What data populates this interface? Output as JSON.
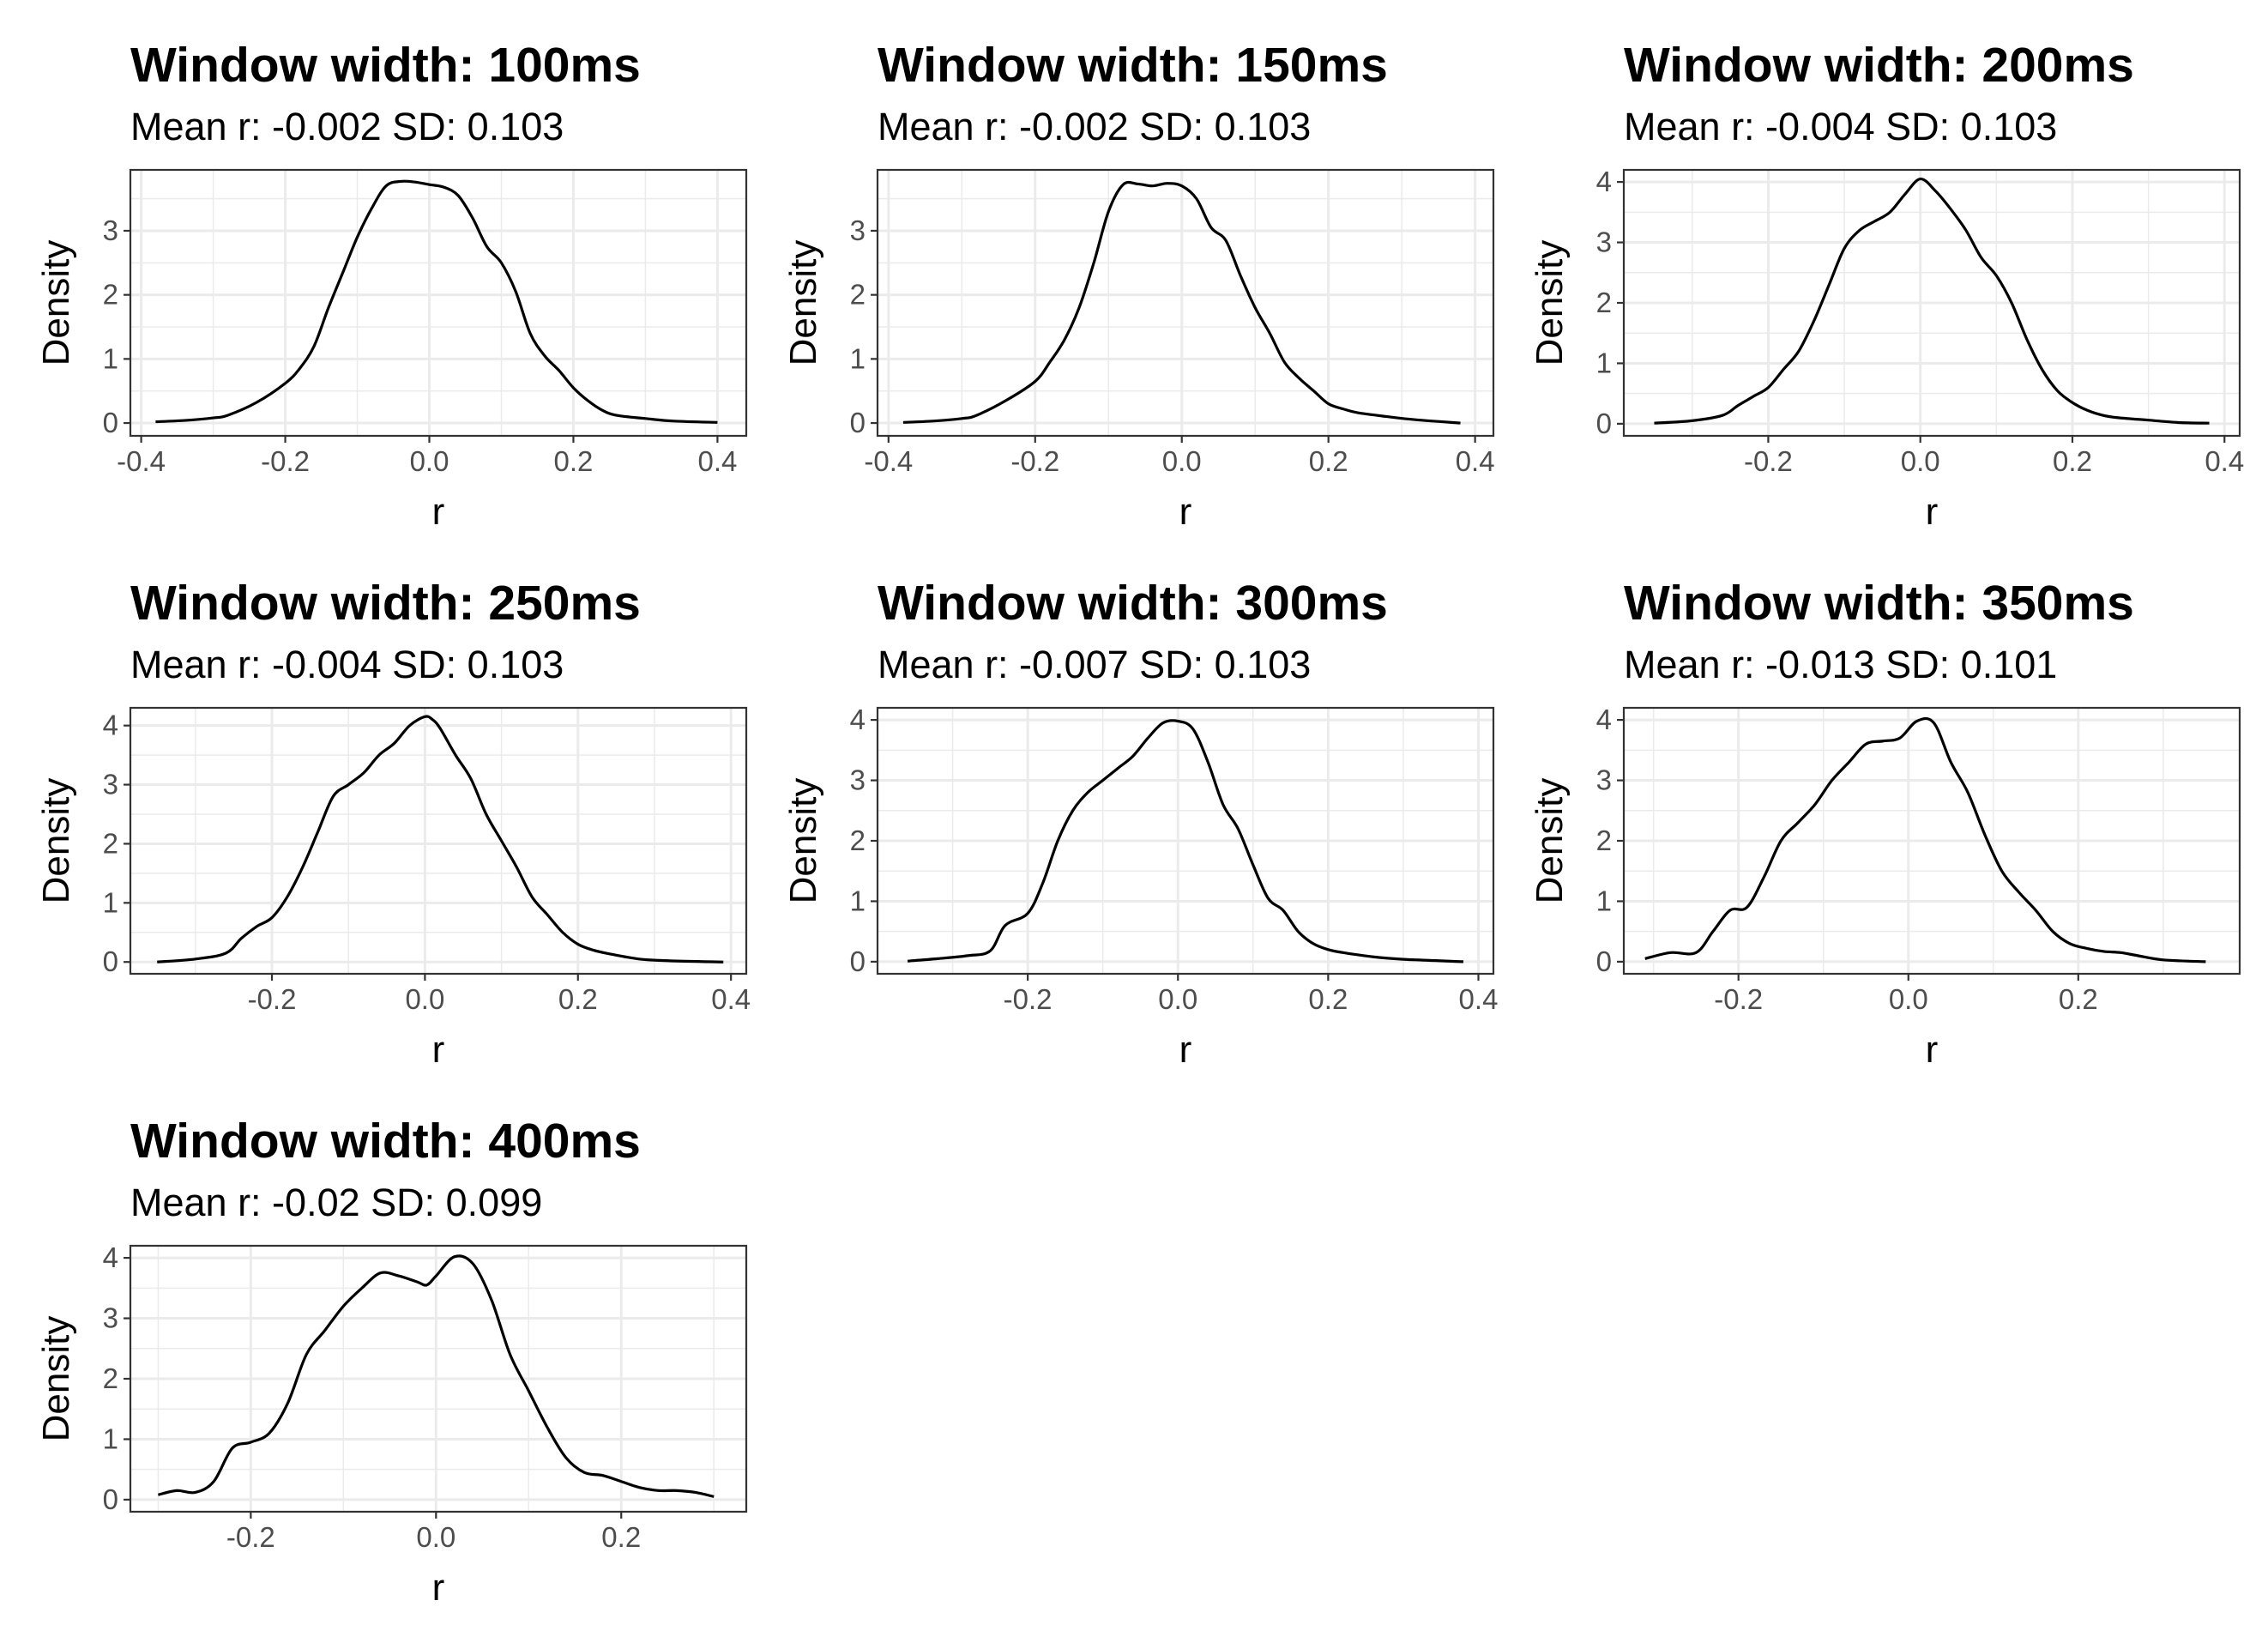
{
  "chart_data": [
    {
      "type": "line",
      "title": "Window width: 100ms",
      "subtitle": "Mean r: -0.002 SD: 0.103",
      "xlabel": "r",
      "ylabel": "Density",
      "xlim": [
        -0.415,
        0.44
      ],
      "ylim": [
        -0.2,
        3.95
      ],
      "xticks": [
        -0.4,
        -0.2,
        0.0,
        0.2,
        0.4
      ],
      "xtick_labels": [
        "-0.4",
        "-0.2",
        "0.0",
        "0.2",
        "0.4"
      ],
      "yticks": [
        0,
        1,
        2,
        3
      ],
      "ytick_labels": [
        "0",
        "1",
        "2",
        "3"
      ],
      "grid": true,
      "series": [
        {
          "x": [
            -0.38,
            -0.34,
            -0.3,
            -0.28,
            -0.24,
            -0.2,
            -0.18,
            -0.16,
            -0.14,
            -0.12,
            -0.1,
            -0.08,
            -0.06,
            -0.04,
            -0.02,
            0.0,
            0.02,
            0.04,
            0.06,
            0.08,
            0.1,
            0.12,
            0.14,
            0.16,
            0.18,
            0.2,
            0.22,
            0.24,
            0.26,
            0.3,
            0.34,
            0.4
          ],
          "y": [
            0.02,
            0.04,
            0.08,
            0.12,
            0.32,
            0.62,
            0.85,
            1.2,
            1.8,
            2.35,
            2.9,
            3.35,
            3.7,
            3.77,
            3.76,
            3.72,
            3.68,
            3.55,
            3.2,
            2.75,
            2.5,
            2.05,
            1.4,
            1.05,
            0.82,
            0.55,
            0.35,
            0.2,
            0.12,
            0.07,
            0.03,
            0.01
          ]
        }
      ]
    },
    {
      "type": "line",
      "title": "Window width: 150ms",
      "subtitle": "Mean r: -0.002 SD: 0.103",
      "xlabel": "r",
      "ylabel": "Density",
      "xlim": [
        -0.415,
        0.425
      ],
      "ylim": [
        -0.2,
        3.95
      ],
      "xticks": [
        -0.4,
        -0.2,
        0.0,
        0.2,
        0.4
      ],
      "xtick_labels": [
        "-0.4",
        "-0.2",
        "0.0",
        "0.2",
        "0.4"
      ],
      "yticks": [
        0,
        1,
        2,
        3
      ],
      "ytick_labels": [
        "0",
        "1",
        "2",
        "3"
      ],
      "grid": true,
      "series": [
        {
          "x": [
            -0.38,
            -0.34,
            -0.3,
            -0.28,
            -0.24,
            -0.2,
            -0.18,
            -0.16,
            -0.14,
            -0.12,
            -0.1,
            -0.08,
            -0.06,
            -0.04,
            -0.02,
            0.0,
            0.02,
            0.04,
            0.06,
            0.08,
            0.1,
            0.12,
            0.14,
            0.16,
            0.18,
            0.2,
            0.22,
            0.24,
            0.28,
            0.32,
            0.38
          ],
          "y": [
            0.01,
            0.03,
            0.07,
            0.12,
            0.35,
            0.65,
            0.95,
            1.3,
            1.8,
            2.5,
            3.3,
            3.72,
            3.73,
            3.7,
            3.74,
            3.7,
            3.5,
            3.05,
            2.85,
            2.3,
            1.8,
            1.4,
            0.95,
            0.7,
            0.5,
            0.3,
            0.22,
            0.16,
            0.1,
            0.05,
            0.0
          ]
        }
      ]
    },
    {
      "type": "line",
      "title": "Window width: 200ms",
      "subtitle": "Mean r: -0.004 SD: 0.103",
      "xlabel": "r",
      "ylabel": "Density",
      "xlim": [
        -0.39,
        0.42
      ],
      "ylim": [
        -0.2,
        4.2
      ],
      "xticks": [
        -0.2,
        0.0,
        0.2,
        0.4
      ],
      "xtick_labels": [
        "-0.2",
        "0.0",
        "0.2",
        "0.4"
      ],
      "yticks": [
        0,
        1,
        2,
        3,
        4
      ],
      "ytick_labels": [
        "0",
        "1",
        "2",
        "3",
        "4"
      ],
      "grid": true,
      "series": [
        {
          "x": [
            -0.35,
            -0.3,
            -0.26,
            -0.24,
            -0.22,
            -0.2,
            -0.18,
            -0.16,
            -0.14,
            -0.12,
            -0.1,
            -0.08,
            -0.06,
            -0.04,
            -0.02,
            0.0,
            0.02,
            0.04,
            0.06,
            0.08,
            0.1,
            0.12,
            0.14,
            0.16,
            0.18,
            0.2,
            0.22,
            0.24,
            0.26,
            0.3,
            0.34,
            0.38
          ],
          "y": [
            0.01,
            0.05,
            0.14,
            0.3,
            0.45,
            0.6,
            0.9,
            1.2,
            1.7,
            2.3,
            2.9,
            3.2,
            3.35,
            3.5,
            3.8,
            4.05,
            3.85,
            3.55,
            3.2,
            2.75,
            2.45,
            2.0,
            1.4,
            0.9,
            0.55,
            0.35,
            0.22,
            0.14,
            0.1,
            0.06,
            0.02,
            0.01
          ]
        }
      ]
    },
    {
      "type": "line",
      "title": "Window width: 250ms",
      "subtitle": "Mean r: -0.004 SD: 0.103",
      "xlabel": "r",
      "ylabel": "Density",
      "xlim": [
        -0.385,
        0.42
      ],
      "ylim": [
        -0.2,
        4.3
      ],
      "xticks": [
        -0.2,
        0.0,
        0.2,
        0.4
      ],
      "xtick_labels": [
        "-0.2",
        "0.0",
        "0.2",
        "0.4"
      ],
      "yticks": [
        0,
        1,
        2,
        3,
        4
      ],
      "ytick_labels": [
        "0",
        "1",
        "2",
        "3",
        "4"
      ],
      "grid": true,
      "series": [
        {
          "x": [
            -0.35,
            -0.3,
            -0.26,
            -0.24,
            -0.22,
            -0.2,
            -0.18,
            -0.16,
            -0.14,
            -0.12,
            -0.1,
            -0.08,
            -0.06,
            -0.04,
            -0.02,
            0.0,
            0.01,
            0.02,
            0.04,
            0.06,
            0.08,
            0.1,
            0.12,
            0.14,
            0.16,
            0.18,
            0.2,
            0.22,
            0.24,
            0.28,
            0.32,
            0.39
          ],
          "y": [
            0.0,
            0.05,
            0.15,
            0.4,
            0.6,
            0.75,
            1.1,
            1.6,
            2.2,
            2.8,
            3.0,
            3.2,
            3.5,
            3.7,
            4.0,
            4.15,
            4.1,
            3.95,
            3.5,
            3.1,
            2.5,
            2.05,
            1.6,
            1.1,
            0.8,
            0.5,
            0.3,
            0.2,
            0.14,
            0.05,
            0.02,
            0.0
          ]
        }
      ]
    },
    {
      "type": "line",
      "title": "Window width: 300ms",
      "subtitle": "Mean r: -0.007 SD: 0.103",
      "xlabel": "r",
      "ylabel": "Density",
      "xlim": [
        -0.4,
        0.42
      ],
      "ylim": [
        -0.2,
        4.2
      ],
      "xticks": [
        -0.2,
        0.0,
        0.2,
        0.4
      ],
      "xtick_labels": [
        "-0.2",
        "0.0",
        "0.2",
        "0.4"
      ],
      "yticks": [
        0,
        1,
        2,
        3,
        4
      ],
      "ytick_labels": [
        "0",
        "1",
        "2",
        "3",
        "4"
      ],
      "grid": true,
      "series": [
        {
          "x": [
            -0.36,
            -0.32,
            -0.28,
            -0.25,
            -0.23,
            -0.2,
            -0.18,
            -0.16,
            -0.14,
            -0.12,
            -0.1,
            -0.08,
            -0.06,
            -0.04,
            -0.02,
            0.0,
            0.02,
            0.04,
            0.06,
            0.08,
            0.1,
            0.12,
            0.14,
            0.16,
            0.18,
            0.2,
            0.22,
            0.26,
            0.3,
            0.38
          ],
          "y": [
            0.01,
            0.05,
            0.1,
            0.18,
            0.6,
            0.8,
            1.3,
            2.0,
            2.5,
            2.8,
            3.0,
            3.2,
            3.4,
            3.7,
            3.95,
            3.98,
            3.85,
            3.3,
            2.6,
            2.2,
            1.6,
            1.05,
            0.85,
            0.5,
            0.3,
            0.2,
            0.15,
            0.08,
            0.04,
            0.0
          ]
        }
      ]
    },
    {
      "type": "line",
      "title": "Window width: 350ms",
      "subtitle": "Mean r: -0.013 SD: 0.101",
      "xlabel": "r",
      "ylabel": "Density",
      "xlim": [
        -0.335,
        0.39
      ],
      "ylim": [
        -0.2,
        4.2
      ],
      "xticks": [
        -0.2,
        0.0,
        0.2
      ],
      "xtick_labels": [
        "-0.2",
        "0.0",
        "0.2"
      ],
      "yticks": [
        0,
        1,
        2,
        3,
        4
      ],
      "ytick_labels": [
        "0",
        "1",
        "2",
        "3",
        "4"
      ],
      "grid": true,
      "series": [
        {
          "x": [
            -0.31,
            -0.28,
            -0.25,
            -0.23,
            -0.21,
            -0.19,
            -0.17,
            -0.15,
            -0.13,
            -0.11,
            -0.09,
            -0.07,
            -0.05,
            -0.03,
            -0.01,
            0.01,
            0.03,
            0.05,
            0.07,
            0.09,
            0.11,
            0.13,
            0.15,
            0.17,
            0.19,
            0.21,
            0.23,
            0.25,
            0.27,
            0.3,
            0.35
          ],
          "y": [
            0.05,
            0.15,
            0.15,
            0.5,
            0.85,
            0.9,
            1.4,
            2.0,
            2.3,
            2.6,
            3.0,
            3.3,
            3.6,
            3.65,
            3.7,
            3.98,
            3.95,
            3.3,
            2.8,
            2.1,
            1.5,
            1.15,
            0.85,
            0.5,
            0.3,
            0.22,
            0.17,
            0.15,
            0.1,
            0.03,
            0.0
          ]
        }
      ]
    },
    {
      "type": "line",
      "title": "Window width: 400ms",
      "subtitle": "Mean r: -0.02 SD: 0.099",
      "xlabel": "r",
      "ylabel": "Density",
      "xlim": [
        -0.33,
        0.335
      ],
      "ylim": [
        -0.2,
        4.2
      ],
      "xticks": [
        -0.2,
        0.0,
        0.2
      ],
      "xtick_labels": [
        "-0.2",
        "0.0",
        "0.2"
      ],
      "yticks": [
        0,
        1,
        2,
        3,
        4
      ],
      "ytick_labels": [
        "0",
        "1",
        "2",
        "3",
        "4"
      ],
      "grid": true,
      "series": [
        {
          "x": [
            -0.3,
            -0.28,
            -0.26,
            -0.24,
            -0.22,
            -0.2,
            -0.18,
            -0.16,
            -0.14,
            -0.12,
            -0.1,
            -0.08,
            -0.06,
            -0.04,
            -0.02,
            -0.01,
            0.0,
            0.02,
            0.04,
            0.06,
            0.08,
            0.1,
            0.12,
            0.14,
            0.16,
            0.18,
            0.2,
            0.22,
            0.24,
            0.26,
            0.28,
            0.3
          ],
          "y": [
            0.08,
            0.15,
            0.12,
            0.3,
            0.85,
            0.95,
            1.1,
            1.6,
            2.4,
            2.8,
            3.2,
            3.5,
            3.75,
            3.7,
            3.6,
            3.55,
            3.7,
            4.02,
            3.9,
            3.3,
            2.4,
            1.8,
            1.2,
            0.7,
            0.45,
            0.4,
            0.3,
            0.2,
            0.15,
            0.15,
            0.12,
            0.05
          ]
        }
      ]
    }
  ]
}
